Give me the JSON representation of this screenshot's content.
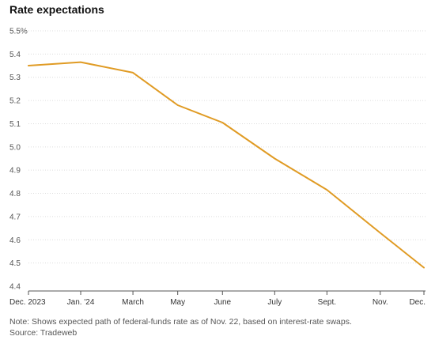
{
  "chart_data": {
    "type": "line",
    "title": "Rate expectations",
    "xlabel": "",
    "ylabel": "",
    "ylim": [
      4.4,
      5.5
    ],
    "yticks": [
      4.4,
      4.5,
      4.6,
      4.7,
      4.8,
      4.9,
      5.0,
      5.1,
      5.2,
      5.3,
      5.4,
      5.5
    ],
    "ytick_labels": [
      "4.4",
      "4.5",
      "4.6",
      "4.7",
      "4.8",
      "4.9",
      "5.0",
      "5.1",
      "5.2",
      "5.3",
      "5.4",
      "5.5%"
    ],
    "x_dates": [
      "2023-12-13",
      "2024-01-31",
      "2024-03-20",
      "2024-05-01",
      "2024-06-12",
      "2024-07-31",
      "2024-09-18",
      "2024-11-07",
      "2024-12-18"
    ],
    "xtick_labels": [
      "Dec. 2023",
      "Jan. '24",
      "March",
      "May",
      "June",
      "July",
      "Sept.",
      "Nov.",
      "Dec."
    ],
    "grid": true,
    "series": [
      {
        "color": "#e09b24",
        "x": [
          "2023-12-13",
          "2024-01-31",
          "2024-03-20",
          "2024-05-01",
          "2024-06-12",
          "2024-07-31",
          "2024-09-18",
          "2024-11-07",
          "2024-12-18"
        ],
        "values": [
          5.35,
          5.365,
          5.32,
          5.18,
          5.105,
          4.95,
          4.815,
          4.63,
          4.48
        ]
      }
    ]
  },
  "note": "Note: Shows expected path of federal-funds rate as of Nov. 22, based on interest-rate swaps.",
  "source": "Source: Tradeweb"
}
